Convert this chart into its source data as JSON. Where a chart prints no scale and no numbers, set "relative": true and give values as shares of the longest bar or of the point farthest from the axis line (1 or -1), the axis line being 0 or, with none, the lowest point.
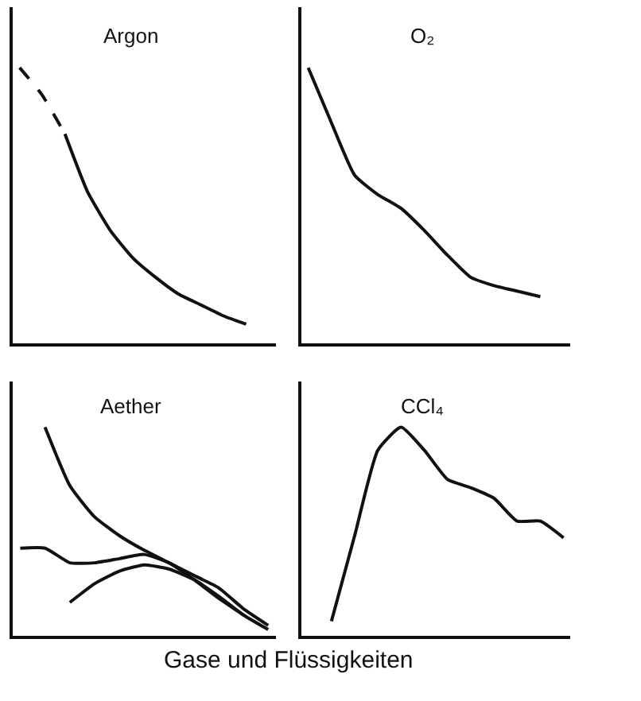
{
  "chart_data": [
    {
      "type": "line",
      "title": "Argon",
      "relative": true,
      "categories": [
        null,
        null,
        null,
        null,
        null,
        null,
        null,
        null,
        null,
        null,
        null,
        null
      ],
      "series": [
        {
          "color": "#111111",
          "line_style": "dashed",
          "values": [
            1.0,
            0.9,
            0.76,
            null,
            null,
            null,
            null,
            null,
            null,
            null,
            null,
            null
          ]
        },
        {
          "color": "#111111",
          "line_style": "solid",
          "values": [
            null,
            null,
            0.76,
            0.55,
            0.41,
            0.31,
            0.24,
            0.18,
            0.14,
            0.1,
            0.07,
            null
          ]
        }
      ]
    },
    {
      "type": "line",
      "title": "O₂",
      "relative": true,
      "categories": [
        null,
        null,
        null,
        null,
        null,
        null,
        null,
        null,
        null,
        null,
        null,
        null
      ],
      "series": [
        {
          "color": "#111111",
          "line_style": "solid",
          "values": [
            1.0,
            0.8,
            0.61,
            0.54,
            0.49,
            0.41,
            0.32,
            0.24,
            0.21,
            0.19,
            0.17,
            null
          ]
        }
      ]
    },
    {
      "type": "line",
      "title": "Aether",
      "relative": true,
      "categories": [
        null,
        null,
        null,
        null,
        null,
        null,
        null,
        null,
        null,
        null,
        null
      ],
      "series": [
        {
          "color": "#111111",
          "line_style": "solid",
          "values": [
            null,
            1.0,
            0.72,
            0.57,
            0.48,
            0.41,
            0.35,
            0.29,
            0.23,
            0.13,
            0.05
          ]
        },
        {
          "color": "#111111",
          "line_style": "solid",
          "values": [
            0.42,
            0.42,
            0.35,
            0.35,
            0.37,
            0.39,
            0.35,
            0.27,
            0.18,
            0.1,
            null
          ]
        },
        {
          "color": "#111111",
          "line_style": "solid",
          "values": [
            null,
            null,
            0.16,
            0.25,
            0.31,
            0.34,
            0.32,
            0.27,
            0.19,
            0.1,
            0.03
          ]
        }
      ]
    },
    {
      "type": "line",
      "title": "CCl₄",
      "relative": true,
      "categories": [
        null,
        null,
        null,
        null,
        null,
        null,
        null,
        null,
        null,
        null,
        null,
        null
      ],
      "annotations": [
        "Gase und Flüssigkeiten"
      ],
      "series": [
        {
          "color": "#111111",
          "line_style": "solid",
          "values": [
            null,
            0.07,
            0.48,
            0.89,
            1.0,
            0.89,
            0.75,
            0.71,
            0.66,
            0.55,
            0.55,
            0.47
          ]
        }
      ]
    }
  ]
}
